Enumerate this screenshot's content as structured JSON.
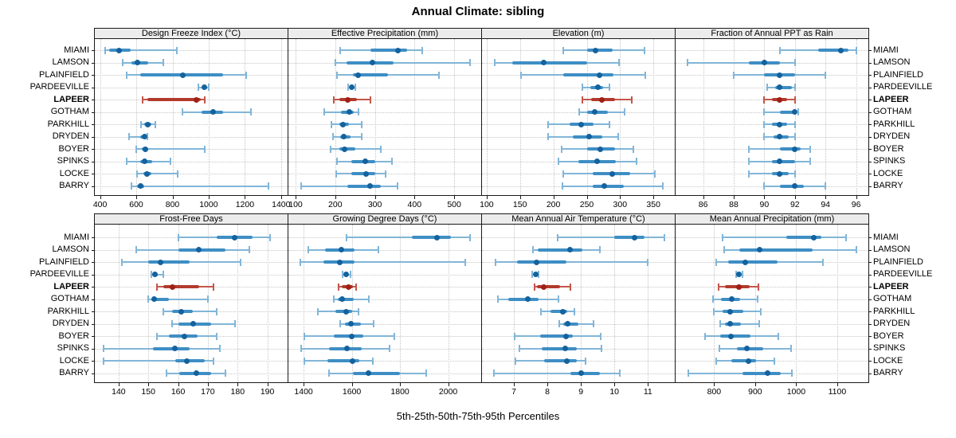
{
  "chart_data": {
    "type": "dotplot",
    "title": "Annual Climate: sibling",
    "caption": "5th-25th-50th-75th-95th Percentiles",
    "percentiles": [
      5,
      25,
      50,
      75,
      95
    ],
    "locations": [
      "MIAMI",
      "LAMSON",
      "PLAINFIELD",
      "PARDEEVILLE",
      "LAPEER",
      "GOTHAM",
      "PARKHILL",
      "DRYDEN",
      "BOYER",
      "SPINKS",
      "LOCKE",
      "BARRY"
    ],
    "highlight_location": "LAPEER",
    "legend_position": "none",
    "grid": "dotted",
    "panels": [
      {
        "title": "Design Freeze Index (°C)",
        "axis": {
          "min": 371,
          "max": 1436,
          "ticks": [
            400,
            600,
            800,
            1000,
            1200,
            1400
          ]
        },
        "series": [
          [
            430,
            450,
            504,
            570,
            822
          ],
          [
            525,
            575,
            606,
            665,
            750
          ],
          [
            545,
            620,
            855,
            1080,
            1205
          ],
          [
            945,
            963,
            977,
            990,
            1002
          ],
          [
            635,
            662,
            930,
            958,
            978
          ],
          [
            855,
            960,
            1025,
            1080,
            1235
          ],
          [
            625,
            645,
            663,
            682,
            706
          ],
          [
            560,
            620,
            645,
            655,
            663
          ],
          [
            600,
            630,
            650,
            668,
            980
          ],
          [
            545,
            623,
            646,
            690,
            790
          ],
          [
            605,
            640,
            660,
            682,
            828
          ],
          [
            575,
            605,
            622,
            642,
            1330
          ]
        ]
      },
      {
        "title": "Effective Precipitation (mm)",
        "axis": {
          "min": 82,
          "max": 568,
          "ticks": [
            100,
            200,
            300,
            400,
            500
          ]
        },
        "series": [
          [
            213,
            288,
            358,
            382,
            420
          ],
          [
            200,
            228,
            294,
            347,
            540
          ],
          [
            205,
            244,
            258,
            334,
            462
          ],
          [
            233,
            237,
            241,
            246,
            251
          ],
          [
            197,
            211,
            232,
            255,
            289
          ],
          [
            173,
            215,
            235,
            246,
            258
          ],
          [
            191,
            210,
            220,
            235,
            267
          ],
          [
            194,
            212,
            222,
            238,
            266
          ],
          [
            189,
            210,
            223,
            250,
            314
          ],
          [
            204,
            240,
            276,
            300,
            343
          ],
          [
            203,
            240,
            277,
            300,
            326
          ],
          [
            114,
            231,
            287,
            315,
            357
          ]
        ]
      },
      {
        "title": "Elevation (m)",
        "axis": {
          "min": 93,
          "max": 382,
          "ticks": [
            100,
            150,
            200,
            250,
            300,
            350
          ]
        },
        "series": [
          [
            215,
            251,
            263,
            289,
            337
          ],
          [
            112,
            138,
            186,
            251,
            298
          ],
          [
            152,
            215,
            269,
            290,
            338
          ],
          [
            243,
            255,
            267,
            275,
            284
          ],
          [
            243,
            257,
            273,
            293,
            318
          ],
          [
            239,
            251,
            262,
            282,
            307
          ],
          [
            192,
            224,
            242,
            260,
            284
          ],
          [
            192,
            229,
            253,
            273,
            297
          ],
          [
            212,
            250,
            270,
            292,
            320
          ],
          [
            207,
            238,
            266,
            294,
            325
          ],
          [
            215,
            259,
            288,
            315,
            352
          ],
          [
            214,
            259,
            276,
            306,
            364
          ]
        ]
      },
      {
        "title": "Fraction of Annual PPT as Rain",
        "axis": {
          "min": 84.2,
          "max": 96.8,
          "ticks": [
            86,
            88,
            90,
            92,
            94,
            96
          ]
        },
        "series": [
          [
            91,
            93.5,
            95,
            95.5,
            96
          ],
          [
            85,
            89,
            90,
            91,
            92
          ],
          [
            88,
            90,
            91,
            92,
            94
          ],
          [
            90.2,
            90.7,
            91,
            91.8,
            92
          ],
          [
            90,
            90.5,
            91,
            91.5,
            92
          ],
          [
            90,
            91,
            92,
            92,
            92.2
          ],
          [
            90,
            90.5,
            91,
            91.5,
            92
          ],
          [
            90,
            90.6,
            91,
            91.6,
            92
          ],
          [
            89,
            91,
            92,
            92.4,
            93
          ],
          [
            89,
            90.5,
            91,
            92,
            93
          ],
          [
            89,
            90.5,
            91,
            91.6,
            92
          ],
          [
            90,
            91,
            92,
            92.6,
            94
          ]
        ]
      },
      {
        "title": "Frost-Free Days",
        "axis": {
          "min": 132,
          "max": 196.8,
          "ticks": [
            140,
            150,
            160,
            170,
            180,
            190
          ]
        },
        "series": [
          [
            160,
            173,
            179,
            185,
            191
          ],
          [
            146,
            160,
            167,
            176,
            184
          ],
          [
            141,
            150,
            154,
            164,
            181
          ],
          [
            151,
            151.5,
            152.3,
            153.2,
            155
          ],
          [
            153,
            155,
            158,
            167,
            172
          ],
          [
            150,
            151,
            152,
            157,
            170
          ],
          [
            155,
            158,
            161,
            165,
            173
          ],
          [
            158,
            160,
            165,
            171,
            179
          ],
          [
            153,
            157,
            162,
            166.5,
            173
          ],
          [
            135,
            151.5,
            159,
            164,
            174
          ],
          [
            135,
            159,
            163,
            169,
            172
          ],
          [
            156,
            160.5,
            166,
            171,
            176
          ]
        ]
      },
      {
        "title": "Growing Degree Days (°C)",
        "axis": {
          "min": 1337,
          "max": 2137,
          "ticks": [
            1400,
            1600,
            1800,
            2000
          ]
        },
        "series": [
          [
            1578,
            1848,
            1953,
            2010,
            2090
          ],
          [
            1420,
            1490,
            1558,
            1610,
            1710
          ],
          [
            1385,
            1482,
            1551,
            1610,
            2070
          ],
          [
            1560,
            1570,
            1578,
            1586,
            1595
          ],
          [
            1545,
            1558,
            1586,
            1605,
            1617
          ],
          [
            1524,
            1542,
            1561,
            1608,
            1670
          ],
          [
            1458,
            1531,
            1575,
            1601,
            1627
          ],
          [
            1553,
            1570,
            1595,
            1636,
            1690
          ],
          [
            1403,
            1526,
            1601,
            1647,
            1776
          ],
          [
            1389,
            1506,
            1581,
            1641,
            1756
          ],
          [
            1403,
            1499,
            1603,
            1630,
            1688
          ],
          [
            1504,
            1605,
            1668,
            1800,
            1910
          ]
        ]
      },
      {
        "title": "Mean Annual Air Temperature (°C)",
        "axis": {
          "min": 6.05,
          "max": 11.8,
          "ticks": [
            7,
            8,
            9,
            10,
            11
          ]
        },
        "series": [
          [
            8.3,
            10.0,
            10.6,
            10.9,
            11.5
          ],
          [
            7.57,
            7.72,
            8.68,
            9.05,
            9.56
          ],
          [
            6.46,
            7.1,
            7.67,
            8.57,
            10.98
          ],
          [
            7.54,
            7.6,
            7.65,
            7.7,
            7.73
          ],
          [
            7.61,
            7.68,
            7.9,
            8.38,
            8.69
          ],
          [
            6.53,
            6.84,
            7.42,
            7.75,
            8.32
          ],
          [
            7.8,
            8.09,
            8.46,
            8.6,
            8.8
          ],
          [
            8.35,
            8.48,
            8.6,
            8.93,
            9.38
          ],
          [
            7.02,
            7.79,
            8.56,
            8.77,
            9.6
          ],
          [
            7.17,
            7.83,
            8.54,
            8.89,
            9.62
          ],
          [
            7.04,
            7.91,
            8.57,
            8.87,
            9.14
          ],
          [
            6.41,
            8.69,
            9.01,
            9.56,
            10.15
          ]
        ]
      },
      {
        "title": "Mean Annual Precipitation (mm)",
        "axis": {
          "min": 706,
          "max": 1176,
          "ticks": [
            800,
            900,
            1000,
            1100
          ]
        },
        "series": [
          [
            820,
            976,
            1043,
            1062,
            1122
          ],
          [
            824,
            862,
            910,
            1040,
            1146
          ],
          [
            805,
            835,
            876,
            955,
            1065
          ],
          [
            854,
            857,
            861,
            865,
            869
          ],
          [
            810,
            827,
            860,
            886,
            908
          ],
          [
            798,
            817,
            842,
            864,
            905
          ],
          [
            800,
            820,
            838,
            872,
            913
          ],
          [
            814,
            827,
            838,
            866,
            909
          ],
          [
            777,
            814,
            840,
            889,
            956
          ],
          [
            812,
            855,
            880,
            920,
            988
          ],
          [
            805,
            842,
            884,
            902,
            946
          ],
          [
            737,
            870,
            930,
            963,
            990
          ]
        ]
      }
    ],
    "colors": {
      "whisker": "#82b6d8",
      "box": "#3e8ec4",
      "median_dot": "#14629e",
      "highlight_whisker": "#c3574b",
      "highlight_box": "#b23a2d",
      "highlight_dot": "#a02015",
      "strip_bg": "#ececec",
      "border": "#1a1a1a",
      "grid": "#c6c6c6"
    }
  }
}
